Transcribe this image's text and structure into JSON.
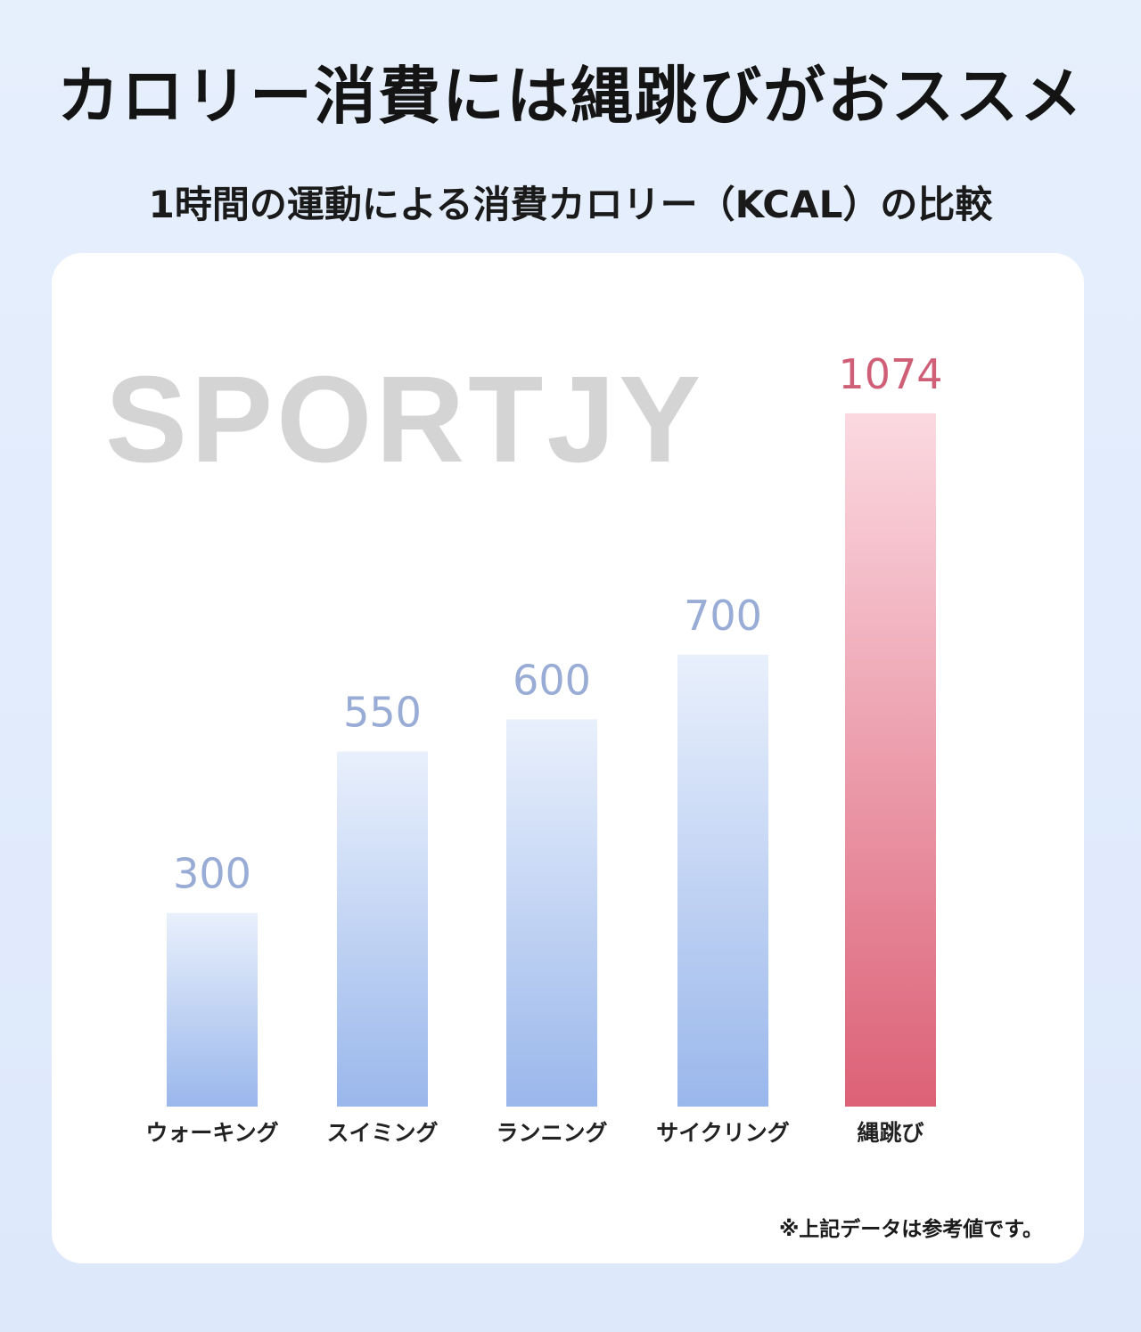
{
  "header": {
    "title": "カロリー消費には縄跳びがおススメ",
    "subtitle": "1時間の運動による消費カロリー（KCAL）の比較"
  },
  "watermark": "SPORTJY",
  "note": "※上記データは参考値です。",
  "colors": {
    "bar_blue_top": "#e9f0fc",
    "bar_blue_bottom": "#9ab7eb",
    "bar_red_top": "#fbd9e1",
    "bar_red_bottom": "#dc6177",
    "value_blue": "#98acd6",
    "value_red": "#cf5f76"
  },
  "chart_data": {
    "type": "bar",
    "categories": [
      "ウォーキング",
      "スイミング",
      "ランニング",
      "サイクリング",
      "縄跳び"
    ],
    "values": [
      300,
      550,
      600,
      700,
      1074
    ],
    "highlight_index": 4,
    "title": "1時間の運動による消費カロリー（KCAL）の比較",
    "xlabel": "",
    "ylabel": "",
    "grid": false,
    "legend": "none"
  }
}
